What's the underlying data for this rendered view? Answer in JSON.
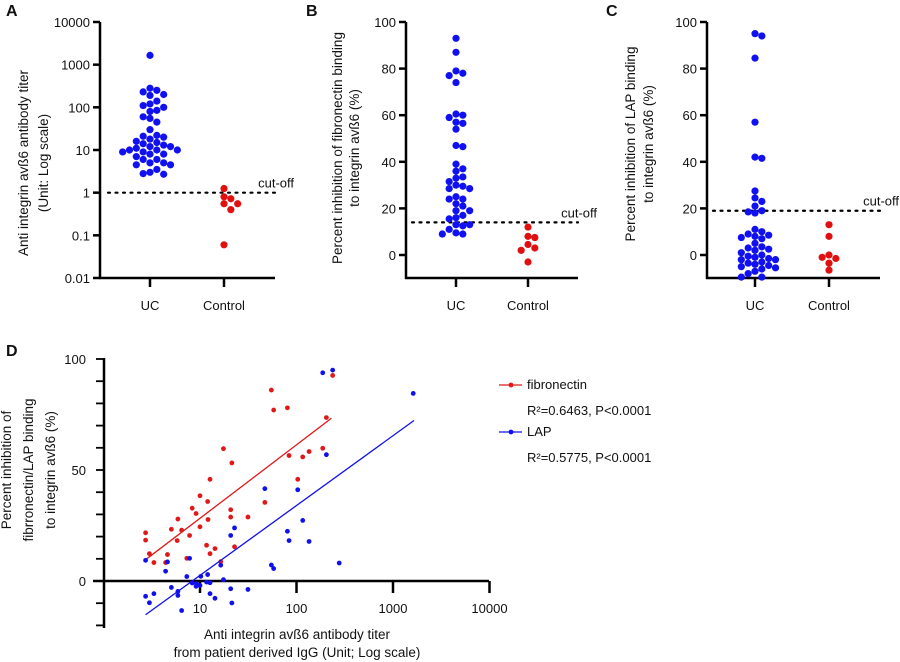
{
  "colors": {
    "uc": "#1010f0",
    "control": "#e01010",
    "fibronectin": "#e01818",
    "lap": "#1010ee"
  },
  "chart_data": [
    {
      "panel": "A",
      "type": "scatter",
      "categories": [
        "UC",
        "Control"
      ],
      "ylabel": [
        "Anti integrin avß6 antibody titer",
        "(Unit: Log scale)"
      ],
      "yscale": "log",
      "ylim": [
        0.01,
        10000
      ],
      "yticks": [
        "0.01",
        "0.1",
        "1",
        "10",
        "100",
        "1000",
        "10000"
      ],
      "cutoff": {
        "value": 1,
        "label": "cut-off"
      },
      "series": [
        {
          "category": "UC",
          "values": [
            1650,
            280,
            250,
            230,
            200,
            190,
            140,
            120,
            110,
            100,
            85,
            80,
            60,
            55,
            45,
            30,
            22,
            21,
            20,
            18,
            16,
            15,
            14,
            13,
            12,
            12,
            11,
            10,
            10,
            10,
            9,
            9,
            8,
            8,
            7,
            6,
            6,
            5,
            5,
            4.5,
            4.5,
            3.5,
            3,
            2.8,
            2.7
          ]
        },
        {
          "category": "Control",
          "values": [
            1.25,
            0.8,
            0.72,
            0.55,
            0.55,
            0.4,
            0.06
          ]
        }
      ]
    },
    {
      "panel": "B",
      "type": "scatter",
      "categories": [
        "UC",
        "Control"
      ],
      "ylabel": [
        "Percent inhibition    of fibronectin binding",
        "to integrin avß6 (%)"
      ],
      "ylim": [
        -10,
        100
      ],
      "yticks": [
        "0",
        "20",
        "40",
        "60",
        "80",
        "100"
      ],
      "cutoff": {
        "value": 14,
        "label": "cut-off"
      },
      "series": [
        {
          "category": "UC",
          "values": [
            93,
            87,
            79,
            78,
            77,
            74,
            60.5,
            60,
            59,
            57,
            56.5,
            54,
            47,
            46.5,
            39,
            37,
            36,
            33.5,
            33,
            31.5,
            30,
            29.5,
            28.5,
            28.5,
            25,
            24,
            24,
            22,
            21,
            19,
            19,
            17,
            16,
            15.5,
            13,
            13,
            12.5,
            11,
            9.5,
            9,
            9
          ]
        },
        {
          "category": "Control",
          "values": [
            12,
            8,
            7.5,
            4.5,
            3,
            2,
            -3
          ]
        }
      ]
    },
    {
      "panel": "C",
      "type": "scatter",
      "categories": [
        "UC",
        "Control"
      ],
      "ylabel": [
        "Percent inhibition    of LAP binding",
        "to integrin avß6 (%)"
      ],
      "ylim": [
        -10,
        100
      ],
      "yticks": [
        "0",
        "20",
        "40",
        "60",
        "80",
        "100"
      ],
      "cutoff": {
        "value": 19,
        "label": "cut-off"
      },
      "series": [
        {
          "category": "UC",
          "values": [
            95,
            94,
            84.5,
            57,
            42,
            41.5,
            27.5,
            24.5,
            23,
            21,
            19,
            18.5,
            18,
            11,
            10,
            9,
            8.5,
            8,
            7.5,
            7,
            5,
            3.5,
            3,
            2.5,
            2,
            1,
            0,
            -0.5,
            -1,
            -1.5,
            -2,
            -2,
            -3,
            -3.5,
            -4,
            -4.5,
            -5,
            -5.5,
            -6,
            -7,
            -8,
            -9.5,
            -9.5
          ]
        },
        {
          "category": "Control",
          "values": [
            13,
            8,
            0,
            -1.5,
            -1,
            -3.5,
            -6.5
          ]
        }
      ]
    },
    {
      "panel": "D",
      "type": "scatter",
      "xscale": "log",
      "xlim": [
        1,
        10000
      ],
      "ylim": [
        -21,
        100
      ],
      "xticks": [
        "10",
        "100",
        "1000",
        "10000"
      ],
      "yticks": [
        "0",
        "50",
        "100"
      ],
      "xlabel": [
        "Anti integrin avß6 antibody titer",
        "from patient derived IgG (Unit; Log scale)"
      ],
      "ylabel": [
        "Percent inhibition of",
        "fibrronectin/LAP binding",
        "to integrin avß6 (%)"
      ],
      "legend_position": "right",
      "series": [
        {
          "name": "fibronectin",
          "stats": "R²=0.6463, P<0.0001",
          "fit": [
            [
              2.73,
              9.6
            ],
            [
              230,
              73.3
            ]
          ],
          "points": [
            [
              2.73,
              21.7
            ],
            [
              2.73,
              18.4
            ],
            [
              2.99,
              12.3
            ],
            [
              3.33,
              8.3
            ],
            [
              4.4,
              8.3
            ],
            [
              4.6,
              11.9
            ],
            [
              5.05,
              23.3
            ],
            [
              5.9,
              27.9
            ],
            [
              5.8,
              18.2
            ],
            [
              6.45,
              22.9
            ],
            [
              7.3,
              10.2
            ],
            [
              7.8,
              20.5
            ],
            [
              8.3,
              32.8
            ],
            [
              9.1,
              30.4
            ],
            [
              10,
              38.4
            ],
            [
              10,
              24.4
            ],
            [
              12.0,
              35.8
            ],
            [
              12.1,
              27.7
            ],
            [
              11.7,
              16.1
            ],
            [
              12.7,
              12.3
            ],
            [
              12.7,
              45.8
            ],
            [
              14.3,
              14.6
            ],
            [
              16.4,
              8.7
            ],
            [
              17.5,
              59.6
            ],
            [
              20.8,
              32.1
            ],
            [
              20.8,
              28.8
            ],
            [
              21.4,
              53.2
            ],
            [
              22.8,
              15.4
            ],
            [
              31.4,
              28.8
            ],
            [
              47,
              35.4
            ],
            [
              54.9,
              86.0
            ],
            [
              58,
              77.0
            ],
            [
              80.5,
              78.0
            ],
            [
              83.7,
              56.5
            ],
            [
              103,
              45.8
            ],
            [
              116,
              55.9
            ],
            [
              135,
              58.3
            ],
            [
              187,
              59.8
            ],
            [
              204,
              73.6
            ],
            [
              237,
              92.6
            ]
          ]
        },
        {
          "name": "LAP",
          "stats": "R²=0.5775, P<0.0001",
          "fit": [
            [
              2.73,
              -15.2
            ],
            [
              1650,
              72.3
            ]
          ],
          "points": [
            [
              2.73,
              9.3
            ],
            [
              2.73,
              -6.9
            ],
            [
              2.99,
              -9.8
            ],
            [
              3.33,
              -5.7
            ],
            [
              4.4,
              4.4
            ],
            [
              4.6,
              8.6
            ],
            [
              5.05,
              -2.9
            ],
            [
              5.9,
              -4.7
            ],
            [
              5.9,
              -6.5
            ],
            [
              6.45,
              -13.3
            ],
            [
              7.3,
              2.0
            ],
            [
              7.8,
              10.2
            ],
            [
              8.3,
              -0.9
            ],
            [
              9.1,
              -2.4
            ],
            [
              9.2,
              -1.2
            ],
            [
              10,
              -2.0
            ],
            [
              10.2,
              2.1
            ],
            [
              12.0,
              2.9
            ],
            [
              11.7,
              -0.5
            ],
            [
              12.7,
              -0.8
            ],
            [
              12.7,
              -5.7
            ],
            [
              14.3,
              -7.8
            ],
            [
              16.4,
              7.1
            ],
            [
              17.5,
              0.6
            ],
            [
              20.8,
              20.5
            ],
            [
              20.8,
              -3.5
            ],
            [
              21.4,
              -9.9
            ],
            [
              22.8,
              23.9
            ],
            [
              31.4,
              -3.8
            ],
            [
              47,
              41.6
            ],
            [
              54.9,
              7.2
            ],
            [
              58,
              5.6
            ],
            [
              80.5,
              22.4
            ],
            [
              83.7,
              18.2
            ],
            [
              103,
              41.1
            ],
            [
              116,
              27.3
            ],
            [
              135,
              17.8
            ],
            [
              187,
              93.8
            ],
            [
              204,
              56.9
            ],
            [
              237,
              95.0
            ],
            [
              277,
              8.1
            ],
            [
              1620,
              84.5
            ]
          ]
        }
      ]
    }
  ]
}
